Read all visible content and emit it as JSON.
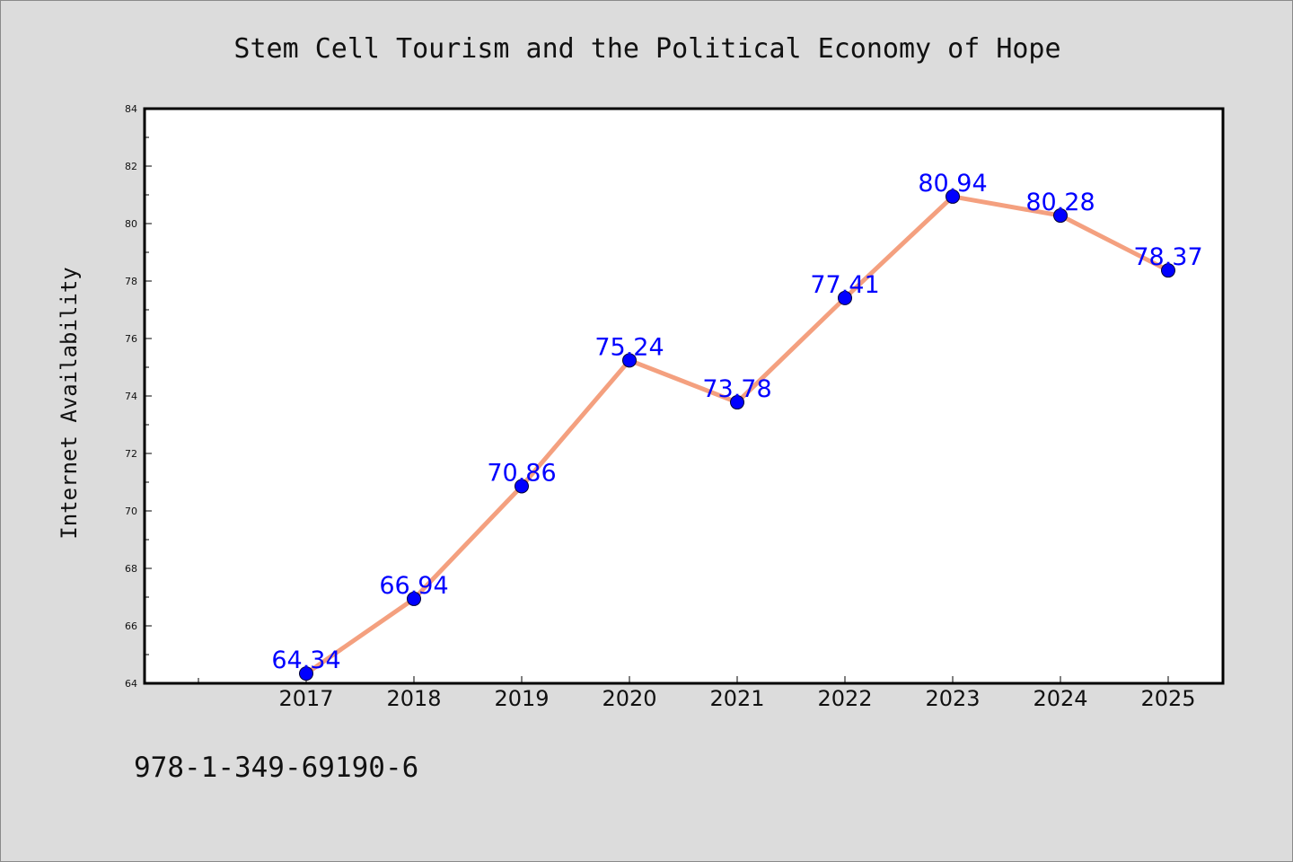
{
  "chart_data": {
    "type": "line",
    "title": "Stem Cell Tourism and the Political Economy of Hope",
    "xlabel": "",
    "ylabel": "Internet Availability",
    "categories": [
      "2017",
      "2018",
      "2019",
      "2020",
      "2021",
      "2022",
      "2023",
      "2024",
      "2025"
    ],
    "series": [
      {
        "values": [
          64.34,
          66.94,
          70.86,
          75.24,
          73.78,
          77.41,
          80.94,
          80.28,
          78.37
        ],
        "data_labels": [
          "64.34",
          "66.94",
          "70.86",
          "75.24",
          "73.78",
          "77.41",
          "80.94",
          "80.28",
          "78.37"
        ]
      }
    ],
    "ylim": [
      64,
      84
    ],
    "yticks": [
      "64",
      "66",
      "68",
      "70",
      "72",
      "74",
      "76",
      "78",
      "80",
      "82",
      "84"
    ],
    "grid": false,
    "legend": "none",
    "colors": {
      "line": "#f4a07f",
      "marker": "#0000ff",
      "data_label": "#0000ff",
      "background": "#dcdcdc",
      "plot_background": "#ffffff"
    }
  },
  "footer": {
    "isbn": "978-1-349-69190-6"
  }
}
